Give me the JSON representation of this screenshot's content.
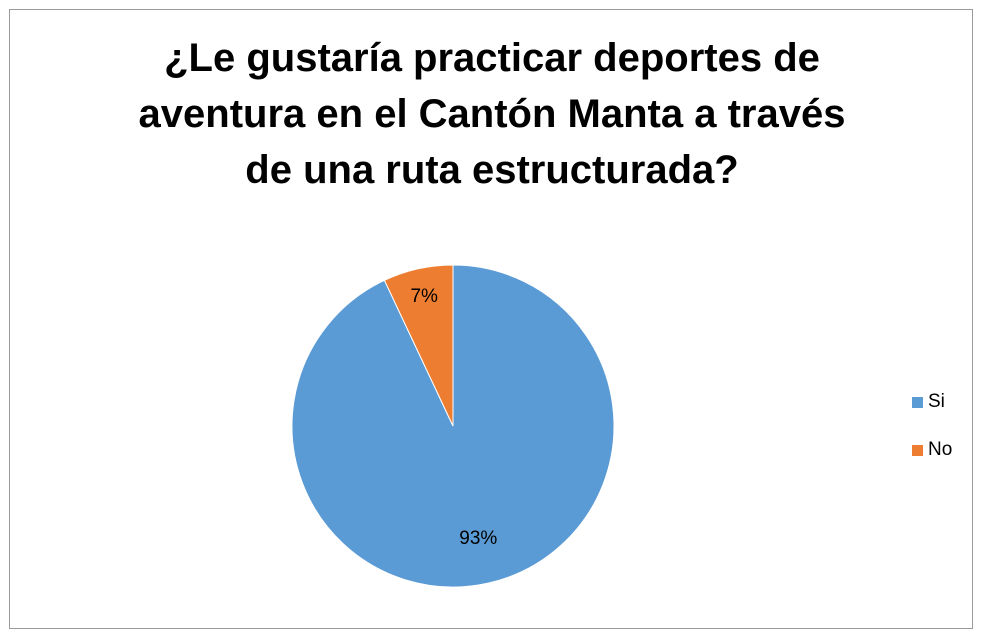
{
  "chart_data": {
    "type": "pie",
    "title_lines": [
      "¿Le gustaría practicar deportes de",
      "aventura en el Cantón Manta a través",
      "de una ruta estructurada?"
    ],
    "categories": [
      "Si",
      "No"
    ],
    "values": [
      93,
      7
    ],
    "data_labels": [
      "93%",
      "7%"
    ],
    "colors": [
      "#5B9BD5",
      "#ED7D31"
    ],
    "legend_position": "right"
  }
}
